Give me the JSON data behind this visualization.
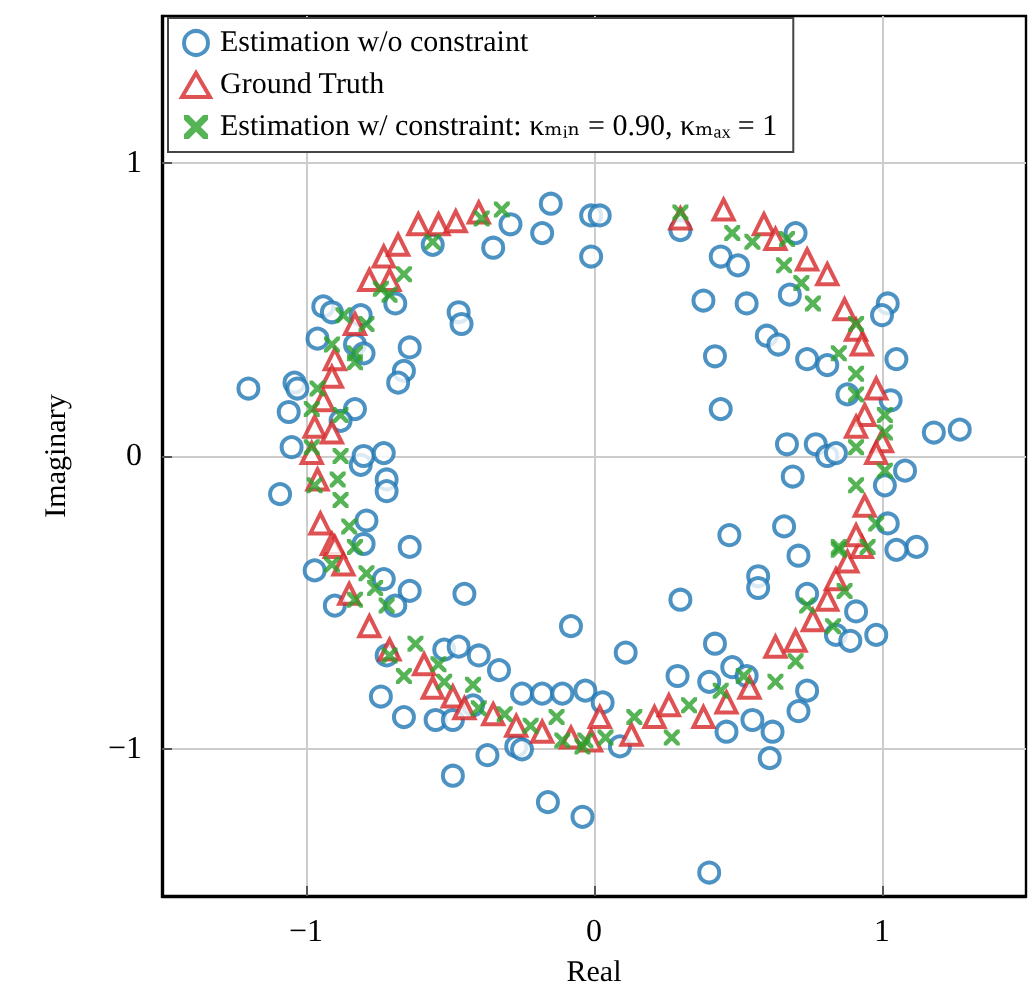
{
  "chart_data": {
    "type": "scatter",
    "xlabel": "Real",
    "ylabel": "Imaginary",
    "xlim": [
      -1.5,
      1.5
    ],
    "ylim": [
      -1.5,
      1.5
    ],
    "xticks": [
      -1,
      0,
      1
    ],
    "yticks": [
      -1,
      0,
      1
    ],
    "grid": true,
    "legend": "top",
    "series": [
      {
        "name": "Estimation w/o constraint",
        "color": "#1f77b4",
        "marker": "circle",
        "x": [
          -1.2,
          -1.04,
          -1.03,
          -1.06,
          -1.05,
          -1.09,
          -0.94,
          -0.91,
          -0.96,
          -0.83,
          -0.8,
          -0.83,
          -0.88,
          -0.81,
          -0.8,
          -0.73,
          -0.72,
          -0.72,
          -0.79,
          -0.8,
          -0.64,
          -0.64,
          -0.66,
          -0.68,
          -0.69,
          -0.47,
          -0.46,
          -0.35,
          -0.29,
          -0.18,
          -0.56,
          -0.15,
          -0.01,
          -0.01,
          -0.81,
          0.02,
          0.3,
          0.44,
          0.5,
          0.38,
          0.53,
          0.68,
          0.7,
          0.6,
          0.64,
          0.42,
          0.74,
          0.81,
          1.05,
          1.02,
          1.0,
          0.88,
          1.03,
          0.44,
          1.18,
          1.27,
          0.67,
          0.77,
          0.81,
          0.84,
          0.69,
          1.08,
          1.01,
          1.02,
          0.47,
          0.66,
          1.12,
          -0.97,
          -0.9,
          -0.73,
          -0.64,
          -0.69,
          -0.45,
          -0.72,
          -0.74,
          -0.66,
          -0.55,
          -0.49,
          -0.52,
          -0.47,
          -0.4,
          -0.33,
          -0.25,
          -0.18,
          -0.11,
          -0.03,
          -0.37,
          -0.49,
          -0.27,
          -0.25,
          -0.16,
          -0.04,
          -0.08,
          -0.42,
          0.03,
          0.09,
          0.11,
          0.29,
          0.3,
          0.42,
          0.4,
          0.48,
          0.53,
          0.55,
          0.46,
          0.62,
          0.61,
          0.71,
          0.74,
          0.4,
          0.57,
          0.57,
          0.71,
          0.74,
          0.84,
          0.89,
          0.98,
          0.91,
          1.05
        ],
        "values": [
          0.23,
          0.25,
          0.23,
          0.15,
          0.03,
          -0.13,
          0.51,
          0.49,
          0.4,
          0.38,
          0.35,
          0.16,
          0.12,
          -0.03,
          0.0,
          0.01,
          -0.08,
          -0.12,
          -0.22,
          -0.3,
          -0.31,
          0.37,
          0.29,
          0.25,
          0.52,
          0.49,
          0.45,
          0.71,
          0.79,
          0.76,
          0.72,
          0.86,
          0.68,
          0.82,
          0.48,
          0.82,
          0.77,
          0.68,
          0.65,
          0.53,
          0.52,
          0.55,
          0.76,
          0.41,
          0.38,
          0.34,
          0.33,
          0.31,
          0.33,
          0.52,
          0.48,
          0.21,
          0.19,
          0.16,
          0.08,
          0.09,
          0.04,
          0.04,
          0.0,
          0.01,
          -0.07,
          -0.05,
          -0.1,
          -0.23,
          -0.27,
          -0.24,
          -0.31,
          -0.39,
          -0.51,
          -0.42,
          -0.46,
          -0.51,
          -0.47,
          -0.68,
          -0.82,
          -0.89,
          -0.9,
          -0.9,
          -0.66,
          -0.65,
          -0.68,
          -0.73,
          -0.81,
          -0.81,
          -0.81,
          -0.8,
          -1.02,
          -1.09,
          -0.99,
          -1.0,
          -1.18,
          -1.23,
          -0.58,
          -0.85,
          -0.84,
          -0.99,
          -0.67,
          -0.75,
          -0.49,
          -0.64,
          -0.77,
          -0.72,
          -0.75,
          -0.9,
          -0.94,
          -0.94,
          -1.03,
          -0.87,
          -0.8,
          -1.42,
          -0.41,
          -0.45,
          -0.34,
          -0.47,
          -0.61,
          -0.63,
          -0.61,
          -0.53,
          -0.32
        ]
      },
      {
        "name": "Ground Truth",
        "color": "#d62728",
        "marker": "triangle",
        "x": [
          -0.61,
          -0.54,
          -0.48,
          -0.4,
          -0.73,
          -0.68,
          -0.78,
          -0.71,
          -0.83,
          -0.9,
          -0.91,
          -0.94,
          -0.97,
          -0.91,
          -0.98,
          -0.96,
          -0.95,
          -0.91,
          -0.9,
          -0.87,
          -0.85,
          -0.78,
          -0.71,
          -0.59,
          -0.56,
          -0.49,
          -0.45,
          -0.35,
          -0.27,
          -0.18,
          -0.08,
          -0.01,
          0.02,
          0.13,
          0.21,
          0.26,
          0.38,
          0.46,
          0.54,
          0.63,
          0.7,
          0.76,
          0.81,
          0.84,
          0.88,
          0.93,
          0.3,
          0.45,
          0.59,
          0.63,
          0.74,
          0.81,
          0.87,
          0.91,
          0.93,
          0.98,
          0.94,
          0.91,
          1.0,
          0.98,
          0.94,
          0.91
        ],
        "values": [
          0.79,
          0.79,
          0.8,
          0.83,
          0.68,
          0.72,
          0.6,
          0.6,
          0.45,
          0.33,
          0.27,
          0.19,
          0.1,
          0.08,
          0.01,
          -0.08,
          -0.23,
          -0.3,
          -0.31,
          -0.37,
          -0.47,
          -0.58,
          -0.66,
          -0.71,
          -0.79,
          -0.82,
          -0.86,
          -0.88,
          -0.92,
          -0.94,
          -0.96,
          -0.97,
          -0.89,
          -0.95,
          -0.89,
          -0.85,
          -0.89,
          -0.84,
          -0.79,
          -0.65,
          -0.63,
          -0.56,
          -0.49,
          -0.42,
          -0.36,
          -0.31,
          0.81,
          0.84,
          0.79,
          0.74,
          0.67,
          0.62,
          0.5,
          0.43,
          0.38,
          0.23,
          0.14,
          0.1,
          0.05,
          0.01,
          -0.17,
          -0.27
        ]
      },
      {
        "name": "Estimation w/ constraint: κₘᵢₙ = 0.90, κₘₐₓ = 1",
        "color": "#2ca02c",
        "marker": "cross",
        "x": [
          -0.56,
          -0.39,
          -0.32,
          -0.66,
          -0.74,
          -0.71,
          -0.87,
          -0.79,
          -0.83,
          -0.83,
          -0.91,
          -0.96,
          -0.98,
          -0.88,
          -0.98,
          -0.88,
          -0.89,
          -0.97,
          -0.88,
          -0.85,
          -0.83,
          -0.91,
          -0.79,
          -0.76,
          -0.83,
          -0.72,
          -0.62,
          -0.71,
          -0.66,
          -0.54,
          -0.52,
          -0.42,
          -0.4,
          -0.31,
          -0.22,
          -0.13,
          -0.11,
          -0.04,
          -0.03,
          0.04,
          0.14,
          0.27,
          0.33,
          0.44,
          0.52,
          0.63,
          0.7,
          0.74,
          0.83,
          0.87,
          0.85,
          0.95,
          0.3,
          0.48,
          0.55,
          0.67,
          0.66,
          0.72,
          0.76,
          0.91,
          0.85,
          0.91,
          0.91,
          1.01,
          1.01,
          0.91,
          0.91,
          1.01,
          0.98,
          0.85
        ],
        "values": [
          0.73,
          0.81,
          0.84,
          0.62,
          0.57,
          0.55,
          0.48,
          0.45,
          0.35,
          0.32,
          0.38,
          0.23,
          0.16,
          0.14,
          0.03,
          0.0,
          -0.08,
          -0.1,
          -0.15,
          -0.24,
          -0.31,
          -0.37,
          -0.4,
          -0.45,
          -0.49,
          -0.51,
          -0.64,
          -0.68,
          -0.75,
          -0.71,
          -0.77,
          -0.78,
          -0.86,
          -0.88,
          -0.92,
          -0.89,
          -0.97,
          -0.99,
          -0.97,
          -0.96,
          -0.89,
          -0.96,
          -0.85,
          -0.8,
          -0.75,
          -0.77,
          -0.7,
          -0.51,
          -0.58,
          -0.46,
          -0.32,
          -0.31,
          0.83,
          0.76,
          0.73,
          0.74,
          0.65,
          0.59,
          0.52,
          0.45,
          0.35,
          0.28,
          0.21,
          0.14,
          0.08,
          0.03,
          -0.1,
          -0.05,
          -0.23,
          -0.31
        ]
      }
    ]
  }
}
